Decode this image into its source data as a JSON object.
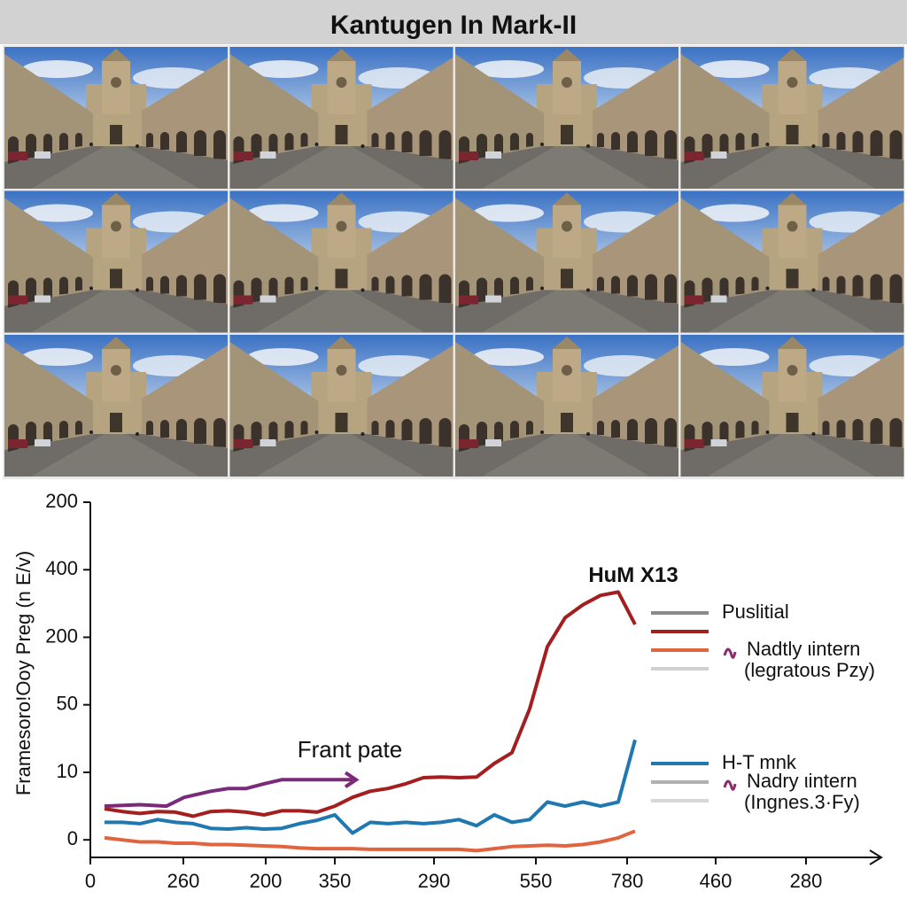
{
  "header": {
    "title": "Kantugen In Mark-II"
  },
  "chart_data": {
    "type": "line",
    "ylabel": "Framesoro!Ooy Preg (n E/v)",
    "xlim": [
      0,
      8.9
    ],
    "xticks": [
      {
        "value": 0,
        "label": "0"
      },
      {
        "value": 1.05,
        "label": "260"
      },
      {
        "value": 1.98,
        "label": "200"
      },
      {
        "value": 2.76,
        "label": "350"
      },
      {
        "value": 3.88,
        "label": "290"
      },
      {
        "value": 5.03,
        "label": "550"
      },
      {
        "value": 6.06,
        "label": "780"
      },
      {
        "value": 7.06,
        "label": "460"
      },
      {
        "value": 8.08,
        "label": "280"
      }
    ],
    "ylim": [
      -0.26,
      5
    ],
    "yticks": [
      {
        "value": 0,
        "label": "0"
      },
      {
        "value": 1,
        "label": "10"
      },
      {
        "value": 2,
        "label": "50"
      },
      {
        "value": 3,
        "label": "200"
      },
      {
        "value": 4,
        "label": "400"
      },
      {
        "value": 5,
        "label": "200"
      }
    ],
    "x": [
      0.16,
      0.36,
      0.56,
      0.76,
      0.96,
      1.16,
      1.36,
      1.56,
      1.76,
      1.96,
      2.16,
      2.36,
      2.56,
      2.76,
      2.96,
      3.16,
      3.36,
      3.56,
      3.76,
      3.96,
      4.16,
      4.36,
      4.56,
      4.76,
      4.96,
      5.16,
      5.36,
      5.56,
      5.76,
      5.96,
      6.15
    ],
    "series": [
      {
        "color": "#a31f1f",
        "values": [
          0.46,
          0.42,
          0.39,
          0.42,
          0.41,
          0.35,
          0.42,
          0.43,
          0.41,
          0.37,
          0.43,
          0.43,
          0.41,
          0.5,
          0.63,
          0.72,
          0.76,
          0.83,
          0.92,
          0.93,
          0.92,
          0.93,
          1.13,
          1.29,
          1.94,
          2.86,
          3.29,
          3.48,
          3.62,
          3.67,
          3.19
        ]
      },
      {
        "color": "#1f78b0",
        "values": [
          0.26,
          0.26,
          0.24,
          0.3,
          0.26,
          0.24,
          0.17,
          0.16,
          0.18,
          0.16,
          0.17,
          0.24,
          0.29,
          0.37,
          0.1,
          0.26,
          0.24,
          0.26,
          0.24,
          0.26,
          0.3,
          0.21,
          0.37,
          0.26,
          0.3,
          0.56,
          0.5,
          0.56,
          0.5,
          0.56,
          1.48
        ]
      },
      {
        "color": "#e0643f",
        "values": [
          0.03,
          0,
          -0.03,
          -0.03,
          -0.05,
          -0.05,
          -0.07,
          -0.07,
          -0.08,
          -0.09,
          -0.1,
          -0.12,
          -0.13,
          -0.13,
          -0.13,
          -0.14,
          -0.14,
          -0.14,
          -0.14,
          -0.14,
          -0.14,
          -0.16,
          -0.13,
          -0.1,
          -0.09,
          -0.08,
          -0.09,
          -0.07,
          -0.03,
          0.03,
          0.13
        ]
      }
    ],
    "arrow_series": {
      "color": "#7b2a7a",
      "x": [
        0.16,
        0.56,
        0.86,
        1.06,
        1.36,
        1.56,
        1.76,
        1.96,
        2.16,
        2.98
      ],
      "values": [
        0.5,
        0.52,
        0.5,
        0.63,
        0.72,
        0.76,
        0.76,
        0.83,
        0.89,
        0.89
      ]
    },
    "annotations": [
      {
        "text": "Frant pate",
        "x": 2.93,
        "y": 1.31
      },
      {
        "text": "HuM X13",
        "x": 6.13,
        "y": 3.9
      }
    ],
    "legend_groups": [
      [
        {
          "color": "#8a8a8a",
          "label": "Puslitial"
        },
        {
          "color": "#a31f1f"
        },
        {
          "color": "#e0643f",
          "label": "Nadtly ιintern",
          "marker_color": "#8b2c6e"
        },
        {
          "color": "#d0d0d0",
          "label": "(legratous Pzy)"
        }
      ],
      [
        {
          "color": "#1f78b0",
          "label": "H-T mnk"
        },
        {
          "color": "#b0b0b0",
          "label": "Nadry ιintern",
          "marker_color": "#8b2c6e"
        },
        {
          "color": "#d6d6d6",
          "label": "(Ingnes.3·Fy)"
        }
      ]
    ]
  }
}
